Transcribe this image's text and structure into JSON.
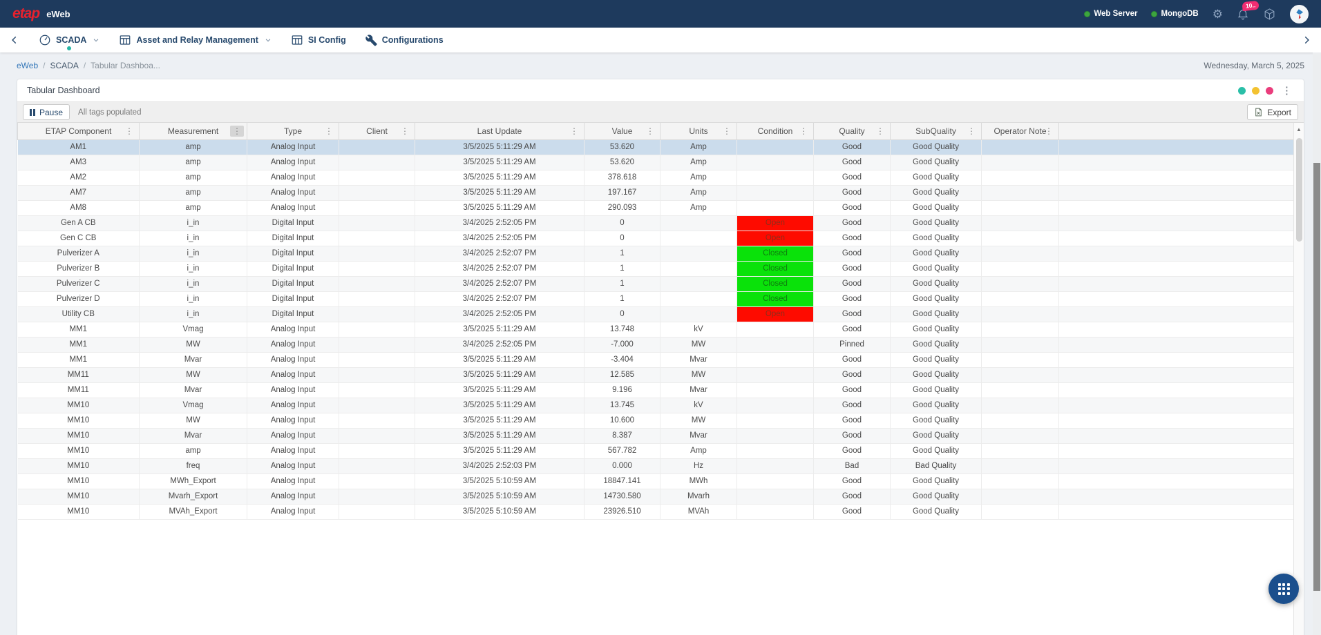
{
  "app": {
    "logo_text": "etap",
    "product_name": "eWeb"
  },
  "topbar": {
    "statuses": [
      {
        "label": "Web Server"
      },
      {
        "label": "MongoDB"
      }
    ],
    "notification_badge": "10..",
    "status_color": "#3da53f"
  },
  "nav": {
    "back_icon": "chevron-left",
    "items": [
      {
        "label": "SCADA",
        "icon": "gauge",
        "has_caret": true,
        "active": true
      },
      {
        "label": "Asset and Relay Management",
        "icon": "grid",
        "has_caret": true,
        "active": false
      },
      {
        "label": "SI Config",
        "icon": "grid",
        "has_caret": false,
        "active": false
      },
      {
        "label": "Configurations",
        "icon": "wrench",
        "has_caret": false,
        "active": false
      }
    ],
    "next_icon": "chevron-right"
  },
  "breadcrumb": {
    "items": [
      "eWeb",
      "SCADA",
      "Tabular Dashboa..."
    ],
    "separator": "/"
  },
  "page_date": "Wednesday, March 5, 2025",
  "card": {
    "title": "Tabular Dashboard",
    "header_dots": [
      "#2abfa8",
      "#f3c231",
      "#ea3d7c"
    ]
  },
  "toolbar": {
    "pause_label": "Pause",
    "status_text": "All tags populated",
    "export_label": "Export"
  },
  "icons": {
    "kebab": "⋮",
    "up_arrow": "▲",
    "gear": "⚙"
  },
  "table": {
    "columns": [
      {
        "label": "ETAP Component",
        "menu_highlight": false
      },
      {
        "label": "Measurement",
        "menu_highlight": true
      },
      {
        "label": "Type",
        "menu_highlight": false
      },
      {
        "label": "Client",
        "menu_highlight": false
      },
      {
        "label": "Last Update",
        "menu_highlight": false
      },
      {
        "label": "Value",
        "menu_highlight": false
      },
      {
        "label": "Units",
        "menu_highlight": false
      },
      {
        "label": "Condition",
        "menu_highlight": false
      },
      {
        "label": "Quality",
        "menu_highlight": false
      },
      {
        "label": "SubQuality",
        "menu_highlight": false
      },
      {
        "label": "Operator Note",
        "menu_highlight": false
      }
    ],
    "rows": [
      {
        "component": "AM1",
        "measurement": "amp",
        "type": "Analog Input",
        "client": "",
        "last_update": "3/5/2025 5:11:29 AM",
        "value": "53.620",
        "units": "Amp",
        "condition": "",
        "condition_state": "",
        "quality": "Good",
        "subquality": "Good Quality",
        "operator_note": "",
        "selected": true
      },
      {
        "component": "AM3",
        "measurement": "amp",
        "type": "Analog Input",
        "client": "",
        "last_update": "3/5/2025 5:11:29 AM",
        "value": "53.620",
        "units": "Amp",
        "condition": "",
        "condition_state": "",
        "quality": "Good",
        "subquality": "Good Quality",
        "operator_note": "",
        "selected": false
      },
      {
        "component": "AM2",
        "measurement": "amp",
        "type": "Analog Input",
        "client": "",
        "last_update": "3/5/2025 5:11:29 AM",
        "value": "378.618",
        "units": "Amp",
        "condition": "",
        "condition_state": "",
        "quality": "Good",
        "subquality": "Good Quality",
        "operator_note": "",
        "selected": false
      },
      {
        "component": "AM7",
        "measurement": "amp",
        "type": "Analog Input",
        "client": "",
        "last_update": "3/5/2025 5:11:29 AM",
        "value": "197.167",
        "units": "Amp",
        "condition": "",
        "condition_state": "",
        "quality": "Good",
        "subquality": "Good Quality",
        "operator_note": "",
        "selected": false
      },
      {
        "component": "AM8",
        "measurement": "amp",
        "type": "Analog Input",
        "client": "",
        "last_update": "3/5/2025 5:11:29 AM",
        "value": "290.093",
        "units": "Amp",
        "condition": "",
        "condition_state": "",
        "quality": "Good",
        "subquality": "Good Quality",
        "operator_note": "",
        "selected": false
      },
      {
        "component": "Gen A CB",
        "measurement": "i_in",
        "type": "Digital Input",
        "client": "",
        "last_update": "3/4/2025 2:52:05 PM",
        "value": "0",
        "units": "",
        "condition": "Open",
        "condition_state": "open",
        "quality": "Good",
        "subquality": "Good Quality",
        "operator_note": "",
        "selected": false
      },
      {
        "component": "Gen C CB",
        "measurement": "i_in",
        "type": "Digital Input",
        "client": "",
        "last_update": "3/4/2025 2:52:05 PM",
        "value": "0",
        "units": "",
        "condition": "Open",
        "condition_state": "open",
        "quality": "Good",
        "subquality": "Good Quality",
        "operator_note": "",
        "selected": false
      },
      {
        "component": "Pulverizer A",
        "measurement": "i_in",
        "type": "Digital Input",
        "client": "",
        "last_update": "3/4/2025 2:52:07 PM",
        "value": "1",
        "units": "",
        "condition": "Closed",
        "condition_state": "closed",
        "quality": "Good",
        "subquality": "Good Quality",
        "operator_note": "",
        "selected": false
      },
      {
        "component": "Pulverizer B",
        "measurement": "i_in",
        "type": "Digital Input",
        "client": "",
        "last_update": "3/4/2025 2:52:07 PM",
        "value": "1",
        "units": "",
        "condition": "Closed",
        "condition_state": "closed",
        "quality": "Good",
        "subquality": "Good Quality",
        "operator_note": "",
        "selected": false
      },
      {
        "component": "Pulverizer C",
        "measurement": "i_in",
        "type": "Digital Input",
        "client": "",
        "last_update": "3/4/2025 2:52:07 PM",
        "value": "1",
        "units": "",
        "condition": "Closed",
        "condition_state": "closed",
        "quality": "Good",
        "subquality": "Good Quality",
        "operator_note": "",
        "selected": false
      },
      {
        "component": "Pulverizer D",
        "measurement": "i_in",
        "type": "Digital Input",
        "client": "",
        "last_update": "3/4/2025 2:52:07 PM",
        "value": "1",
        "units": "",
        "condition": "Closed",
        "condition_state": "closed",
        "quality": "Good",
        "subquality": "Good Quality",
        "operator_note": "",
        "selected": false
      },
      {
        "component": "Utility CB",
        "measurement": "i_in",
        "type": "Digital Input",
        "client": "",
        "last_update": "3/4/2025 2:52:05 PM",
        "value": "0",
        "units": "",
        "condition": "Open",
        "condition_state": "open",
        "quality": "Good",
        "subquality": "Good Quality",
        "operator_note": "",
        "selected": false
      },
      {
        "component": "MM1",
        "measurement": "Vmag",
        "type": "Analog Input",
        "client": "",
        "last_update": "3/5/2025 5:11:29 AM",
        "value": "13.748",
        "units": "kV",
        "condition": "",
        "condition_state": "",
        "quality": "Good",
        "subquality": "Good Quality",
        "operator_note": "",
        "selected": false
      },
      {
        "component": "MM1",
        "measurement": "MW",
        "type": "Analog Input",
        "client": "",
        "last_update": "3/4/2025 2:52:05 PM",
        "value": "-7.000",
        "units": "MW",
        "condition": "",
        "condition_state": "",
        "quality": "Pinned",
        "subquality": "Good Quality",
        "operator_note": "",
        "selected": false
      },
      {
        "component": "MM1",
        "measurement": "Mvar",
        "type": "Analog Input",
        "client": "",
        "last_update": "3/5/2025 5:11:29 AM",
        "value": "-3.404",
        "units": "Mvar",
        "condition": "",
        "condition_state": "",
        "quality": "Good",
        "subquality": "Good Quality",
        "operator_note": "",
        "selected": false
      },
      {
        "component": "MM11",
        "measurement": "MW",
        "type": "Analog Input",
        "client": "",
        "last_update": "3/5/2025 5:11:29 AM",
        "value": "12.585",
        "units": "MW",
        "condition": "",
        "condition_state": "",
        "quality": "Good",
        "subquality": "Good Quality",
        "operator_note": "",
        "selected": false
      },
      {
        "component": "MM11",
        "measurement": "Mvar",
        "type": "Analog Input",
        "client": "",
        "last_update": "3/5/2025 5:11:29 AM",
        "value": "9.196",
        "units": "Mvar",
        "condition": "",
        "condition_state": "",
        "quality": "Good",
        "subquality": "Good Quality",
        "operator_note": "",
        "selected": false
      },
      {
        "component": "MM10",
        "measurement": "Vmag",
        "type": "Analog Input",
        "client": "",
        "last_update": "3/5/2025 5:11:29 AM",
        "value": "13.745",
        "units": "kV",
        "condition": "",
        "condition_state": "",
        "quality": "Good",
        "subquality": "Good Quality",
        "operator_note": "",
        "selected": false
      },
      {
        "component": "MM10",
        "measurement": "MW",
        "type": "Analog Input",
        "client": "",
        "last_update": "3/5/2025 5:11:29 AM",
        "value": "10.600",
        "units": "MW",
        "condition": "",
        "condition_state": "",
        "quality": "Good",
        "subquality": "Good Quality",
        "operator_note": "",
        "selected": false
      },
      {
        "component": "MM10",
        "measurement": "Mvar",
        "type": "Analog Input",
        "client": "",
        "last_update": "3/5/2025 5:11:29 AM",
        "value": "8.387",
        "units": "Mvar",
        "condition": "",
        "condition_state": "",
        "quality": "Good",
        "subquality": "Good Quality",
        "operator_note": "",
        "selected": false
      },
      {
        "component": "MM10",
        "measurement": "amp",
        "type": "Analog Input",
        "client": "",
        "last_update": "3/5/2025 5:11:29 AM",
        "value": "567.782",
        "units": "Amp",
        "condition": "",
        "condition_state": "",
        "quality": "Good",
        "subquality": "Good Quality",
        "operator_note": "",
        "selected": false
      },
      {
        "component": "MM10",
        "measurement": "freq",
        "type": "Analog Input",
        "client": "",
        "last_update": "3/4/2025 2:52:03 PM",
        "value": "0.000",
        "units": "Hz",
        "condition": "",
        "condition_state": "",
        "quality": "Bad",
        "subquality": "Bad Quality",
        "operator_note": "",
        "selected": false
      },
      {
        "component": "MM10",
        "measurement": "MWh_Export",
        "type": "Analog Input",
        "client": "",
        "last_update": "3/5/2025 5:10:59 AM",
        "value": "18847.141",
        "units": "MWh",
        "condition": "",
        "condition_state": "",
        "quality": "Good",
        "subquality": "Good Quality",
        "operator_note": "",
        "selected": false
      },
      {
        "component": "MM10",
        "measurement": "Mvarh_Export",
        "type": "Analog Input",
        "client": "",
        "last_update": "3/5/2025 5:10:59 AM",
        "value": "14730.580",
        "units": "Mvarh",
        "condition": "",
        "condition_state": "",
        "quality": "Good",
        "subquality": "Good Quality",
        "operator_note": "",
        "selected": false
      },
      {
        "component": "MM10",
        "measurement": "MVAh_Export",
        "type": "Analog Input",
        "client": "",
        "last_update": "3/5/2025 5:10:59 AM",
        "value": "23926.510",
        "units": "MVAh",
        "condition": "",
        "condition_state": "",
        "quality": "Good",
        "subquality": "Good Quality",
        "operator_note": "",
        "selected": false
      }
    ]
  }
}
